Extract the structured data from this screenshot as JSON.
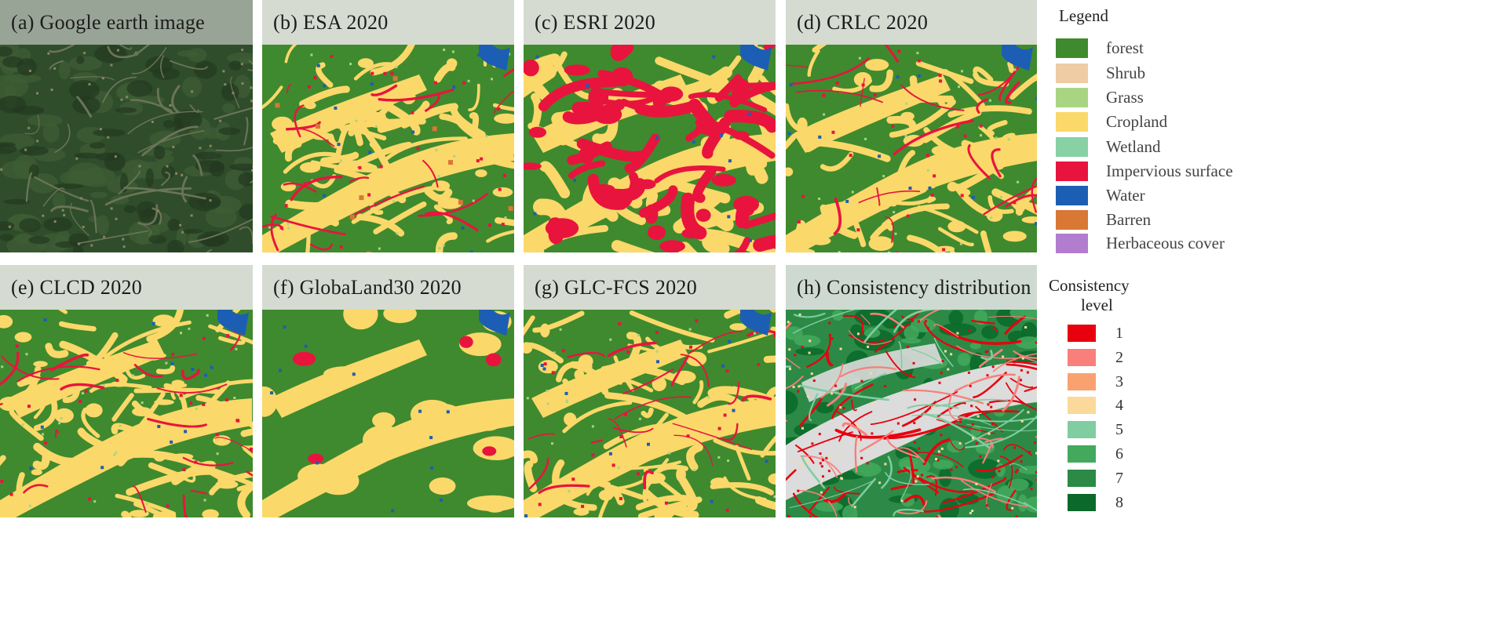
{
  "panels": [
    {
      "id": "a",
      "title": "(a) Google earth image",
      "kind": "satellite",
      "seed": 11
    },
    {
      "id": "b",
      "title": "(b) ESA 2020",
      "kind": "landcover",
      "seed": 23
    },
    {
      "id": "c",
      "title": "(c) ESRI 2020",
      "kind": "landcover-heavy",
      "seed": 37
    },
    {
      "id": "d",
      "title": "(d) CRLC 2020",
      "kind": "landcover",
      "seed": 41
    },
    {
      "id": "e",
      "title": "(e) CLCD 2020",
      "kind": "landcover",
      "seed": 53
    },
    {
      "id": "f",
      "title": "(f) GlobaLand30  2020",
      "kind": "landcover-coarse",
      "seed": 67
    },
    {
      "id": "g",
      "title": "(g) GLC-FCS  2020",
      "kind": "landcover",
      "seed": 79
    },
    {
      "id": "h",
      "title": "(h) Consistency  distribution",
      "kind": "consistency",
      "seed": 83
    }
  ],
  "legend": {
    "title": "Legend",
    "items": [
      {
        "label": "forest",
        "color": "#3f8a2e"
      },
      {
        "label": "Shrub",
        "color": "#efcca3"
      },
      {
        "label": "Grass",
        "color": "#a9d583"
      },
      {
        "label": "Cropland",
        "color": "#fbd86a"
      },
      {
        "label": "Wetland",
        "color": "#87d1a5"
      },
      {
        "label": "Impervious surface",
        "color": "#e8143e"
      },
      {
        "label": "Water",
        "color": "#1c5eb4"
      },
      {
        "label": "Barren",
        "color": "#d97735"
      },
      {
        "label": "Herbaceous cover",
        "color": "#b27ccf"
      }
    ]
  },
  "consistency": {
    "title_line1": "Consistency",
    "title_line2": "level",
    "levels": [
      {
        "label": "1",
        "color": "#e8000e"
      },
      {
        "label": "2",
        "color": "#f87f7a"
      },
      {
        "label": "3",
        "color": "#f9a270"
      },
      {
        "label": "4",
        "color": "#fbd99a"
      },
      {
        "label": "5",
        "color": "#7fcda1"
      },
      {
        "label": "6",
        "color": "#43a95d"
      },
      {
        "label": "7",
        "color": "#2c8a46"
      },
      {
        "label": "8",
        "color": "#0b6a2b"
      }
    ]
  }
}
